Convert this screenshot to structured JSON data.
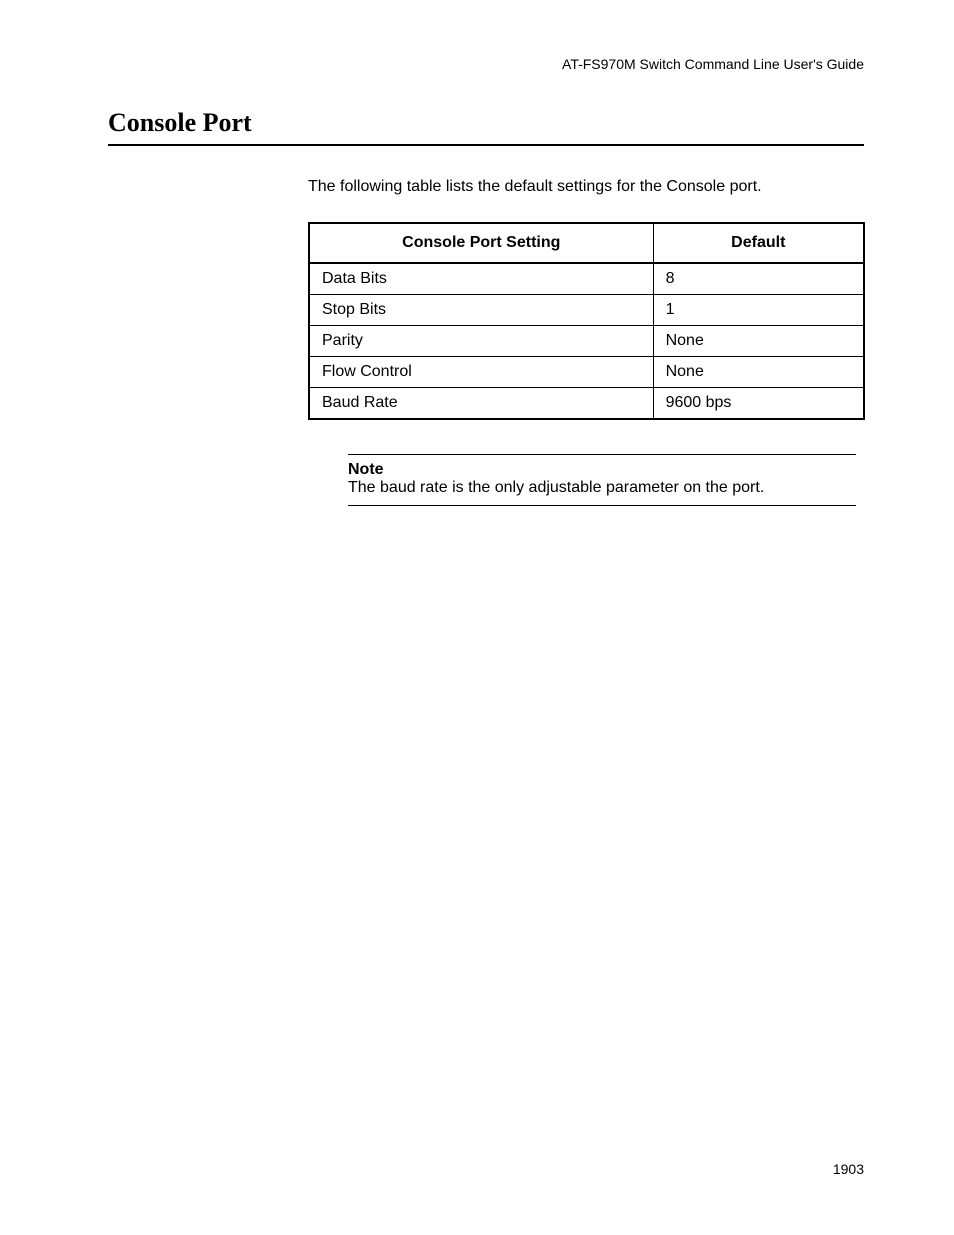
{
  "header": "AT-FS970M Switch Command Line User's Guide",
  "section_title": "Console Port",
  "intro": "The following table lists the default settings for the Console port.",
  "table": {
    "columns": [
      "Console Port Setting",
      "Default"
    ],
    "rows": [
      [
        "Data Bits",
        "8"
      ],
      [
        "Stop Bits",
        "1"
      ],
      [
        "Parity",
        "None"
      ],
      [
        "Flow Control",
        "None"
      ],
      [
        "Baud Rate",
        "9600 bps"
      ]
    ],
    "col_widths_pct": [
      62,
      38
    ],
    "border_color": "#000000",
    "header_fontsize": 16,
    "cell_fontsize": 16
  },
  "note": {
    "label": "Note",
    "text": "The baud rate is the only adjustable parameter on the port."
  },
  "page_number": "1903",
  "colors": {
    "background": "#ffffff",
    "text": "#000000"
  },
  "fonts": {
    "body_family": "Arial, Helvetica, sans-serif",
    "title_family": "Times New Roman, Times, serif",
    "title_size_pt": 26,
    "body_size_pt": 16,
    "header_size_pt": 14
  }
}
